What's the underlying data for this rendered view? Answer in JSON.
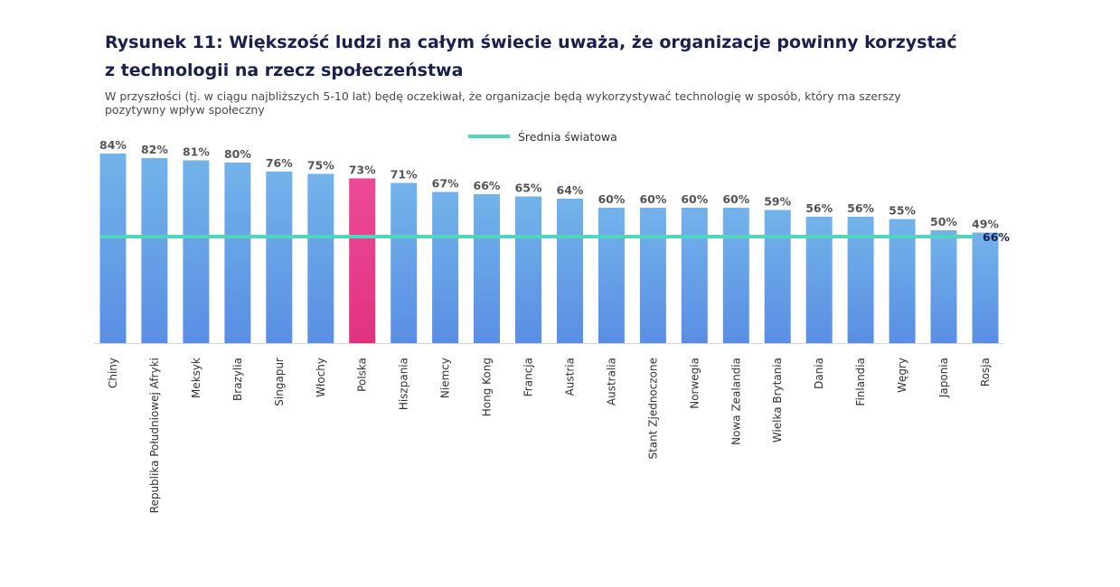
{
  "chart_data": {
    "type": "bar",
    "title": "Rysunek 11: Większość ludzi na całym świecie uważa, że organizacje powinny korzystać z technologii na rzecz społeczeństwa",
    "subtitle": "W przyszłości (tj. w ciągu najbliższych 5-10 lat) będę oczekiwał, że organizacje będą wykorzystywać technologię w sposób, który ma szerszy pozytywny wpływ społeczny",
    "categories": [
      "Chiny",
      "Republika Południowej Afryki",
      "Meksyk",
      "Brazylia",
      "Singapur",
      "Włochy",
      "Polska",
      "Hiszpania",
      "Niemcy",
      "Hong Kong",
      "Francja",
      "Austria",
      "Australia",
      "Stant Zjednoczone",
      "Norwegia",
      "Nowa Zealandia",
      "Wielka Brytania",
      "Dania",
      "Finlandia",
      "Węgry",
      "Japonia",
      "Rosja"
    ],
    "values": [
      84,
      82,
      81,
      80,
      76,
      75,
      73,
      71,
      67,
      66,
      65,
      64,
      60,
      60,
      60,
      60,
      59,
      56,
      56,
      55,
      50,
      49
    ],
    "value_labels": [
      "84%",
      "82%",
      "81%",
      "80%",
      "76%",
      "75%",
      "73%",
      "71%",
      "67%",
      "66%",
      "65%",
      "64%",
      "60%",
      "60%",
      "60%",
      "60%",
      "59%",
      "56%",
      "56%",
      "55%",
      "50%",
      "49%"
    ],
    "highlight_category": "Polska",
    "reference_line": {
      "name": "Średnia światowa",
      "value": 66,
      "label": "66%"
    },
    "ylim": [
      0,
      84
    ],
    "legend_placement": "top-center",
    "grid": false,
    "colors": {
      "bar_top": "#73b3ea",
      "bar_bottom": "#5a8ee3",
      "highlight_top": "#ec4a98",
      "highlight_bottom": "#e0337f",
      "reference_line": "#4fd6bd",
      "title": "#1a1f4e"
    }
  }
}
